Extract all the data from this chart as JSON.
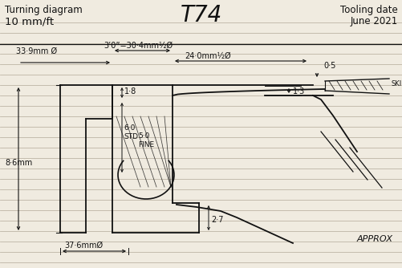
{
  "title": "T74",
  "top_left_line1": "Turning diagram",
  "top_left_line2": "10 mm/ft",
  "top_right_line1": "Tooling date",
  "top_right_line2": "June 2021",
  "dim_3ft": "3’0”=30·4mm½Ø",
  "dim_24": "24·0mm½Ø",
  "dim_339": "33·9mm Ø",
  "dim_05": "0·5",
  "dim_13": "1·3",
  "dim_18": "1·8",
  "dim_86": "8·6mm",
  "dim_27": "2·7",
  "dim_376": "37·6mmØ",
  "label_skim": "SKIM",
  "label_approx": "APPROX",
  "bg_color": "#f0ebe0",
  "line_color": "#111111",
  "ruled_line_color": "#b8b0a0",
  "font_size_title": 20,
  "font_size_header": 8.5,
  "font_size_dim": 7,
  "font_size_small": 6.5
}
